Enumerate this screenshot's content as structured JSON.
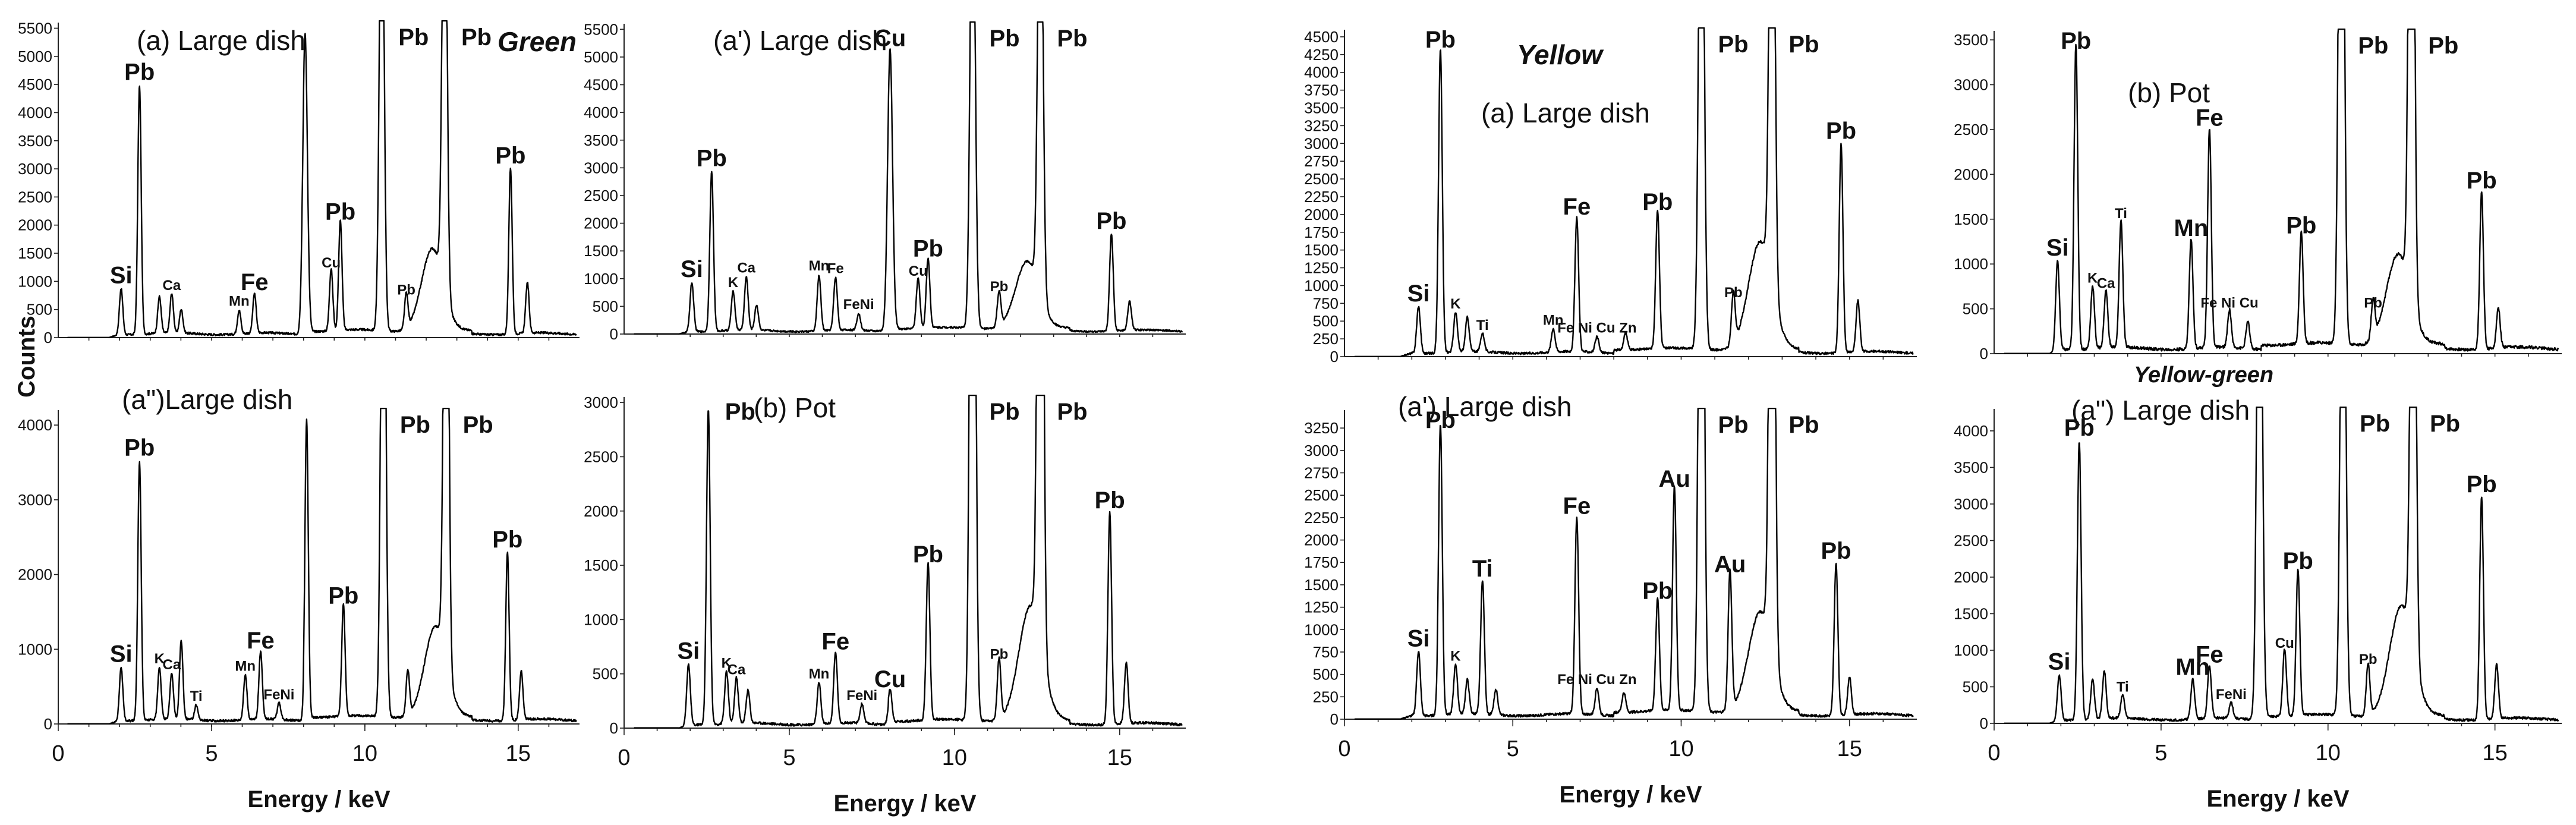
{
  "figure": {
    "y_axis_title": "Counts",
    "group_labels": {
      "green": "Green",
      "yellow": "Yellow",
      "yellow_green": "Yellow-green"
    }
  },
  "chart_data": [
    {
      "id": "green_a",
      "type": "line",
      "title": "(a) Large dish",
      "xlabel": "",
      "ylabel": "Counts",
      "xlim": [
        0,
        17
      ],
      "ylim": [
        0,
        5600
      ],
      "yticks": [
        0,
        500,
        1000,
        1500,
        2000,
        2500,
        3000,
        3500,
        4000,
        4500,
        5000,
        5500
      ],
      "xticks": [],
      "baseline": 70,
      "peaks": [
        {
          "x": 2.05,
          "y": 820,
          "label": "Si",
          "size": "l"
        },
        {
          "x": 2.65,
          "y": 4430,
          "label": "Pb",
          "size": "l"
        },
        {
          "x": 3.3,
          "y": 650,
          "label": "",
          "size": "s"
        },
        {
          "x": 3.7,
          "y": 700,
          "label": "Ca",
          "size": "s"
        },
        {
          "x": 4.01,
          "y": 420,
          "label": "",
          "size": "s"
        },
        {
          "x": 5.9,
          "y": 420,
          "label": "Mn",
          "size": "s"
        },
        {
          "x": 6.4,
          "y": 700,
          "label": "Fe",
          "size": "l"
        },
        {
          "x": 8.05,
          "y": 5300,
          "label": "",
          "size": "s"
        },
        {
          "x": 8.9,
          "y": 1100,
          "label": "Cu",
          "size": "s"
        },
        {
          "x": 9.2,
          "y": 1950,
          "label": "Pb",
          "size": "l"
        },
        {
          "x": 10.55,
          "y": 9000,
          "label": "Pb",
          "size": "l"
        },
        {
          "x": 11.35,
          "y": 620,
          "label": "Pb",
          "size": "s"
        },
        {
          "x": 12.6,
          "y": 9000,
          "label": "Pb",
          "size": "l"
        },
        {
          "x": 14.75,
          "y": 2950,
          "label": "Pb",
          "size": "l"
        },
        {
          "x": 15.3,
          "y": 900,
          "label": "",
          "size": "s"
        }
      ],
      "bump": {
        "x": 12.2,
        "y": 1450,
        "w": 0.35
      }
    },
    {
      "id": "green_a1",
      "type": "line",
      "title": "(a') Large dish",
      "xlabel": "",
      "ylabel": "Counts",
      "xlim": [
        0,
        17
      ],
      "ylim": [
        0,
        5600
      ],
      "yticks": [
        0,
        500,
        1000,
        1500,
        2000,
        2500,
        3000,
        3500,
        4000,
        4500,
        5000,
        5500
      ],
      "xticks": [],
      "baseline": 60,
      "peaks": [
        {
          "x": 2.05,
          "y": 880,
          "label": "Si",
          "size": "l"
        },
        {
          "x": 2.65,
          "y": 2880,
          "label": "Pb",
          "size": "l"
        },
        {
          "x": 3.3,
          "y": 700,
          "label": "K",
          "size": "s"
        },
        {
          "x": 3.7,
          "y": 960,
          "label": "Ca",
          "size": "s"
        },
        {
          "x": 4.01,
          "y": 450,
          "label": "",
          "size": "s"
        },
        {
          "x": 5.9,
          "y": 1000,
          "label": "Mn",
          "size": "s"
        },
        {
          "x": 6.4,
          "y": 950,
          "label": "Fe",
          "size": "s"
        },
        {
          "x": 7.1,
          "y": 300,
          "label": "FeNi",
          "size": "s"
        },
        {
          "x": 8.05,
          "y": 5050,
          "label": "Cu",
          "size": "l"
        },
        {
          "x": 8.9,
          "y": 900,
          "label": "Cu",
          "size": "s"
        },
        {
          "x": 9.2,
          "y": 1250,
          "label": "Pb",
          "size": "l"
        },
        {
          "x": 10.55,
          "y": 9000,
          "label": "Pb",
          "size": "l"
        },
        {
          "x": 11.35,
          "y": 620,
          "label": "Pb",
          "size": "s"
        },
        {
          "x": 12.6,
          "y": 9000,
          "label": "Pb",
          "size": "l"
        },
        {
          "x": 14.75,
          "y": 1750,
          "label": "Pb",
          "size": "l"
        },
        {
          "x": 15.3,
          "y": 520,
          "label": "",
          "size": "s"
        }
      ],
      "bump": {
        "x": 12.2,
        "y": 1200,
        "w": 0.35
      }
    },
    {
      "id": "yellow_a",
      "type": "line",
      "title": "(a) Large dish",
      "xlabel": "",
      "ylabel": "Counts",
      "xlim": [
        0,
        17
      ],
      "ylim": [
        0,
        4600
      ],
      "yticks": [
        0,
        250,
        500,
        750,
        1000,
        1250,
        1500,
        1750,
        2000,
        2250,
        2500,
        2750,
        3000,
        3250,
        3500,
        3750,
        4000,
        4250,
        4500
      ],
      "xticks": [],
      "baseline": 60,
      "peaks": [
        {
          "x": 2.2,
          "y": 660,
          "label": "Si",
          "size": "l"
        },
        {
          "x": 2.85,
          "y": 4280,
          "label": "Pb",
          "size": "l"
        },
        {
          "x": 3.3,
          "y": 560,
          "label": "K",
          "size": "s"
        },
        {
          "x": 3.65,
          "y": 480,
          "label": "",
          "size": "s"
        },
        {
          "x": 4.1,
          "y": 260,
          "label": "Ti",
          "size": "s"
        },
        {
          "x": 6.2,
          "y": 330,
          "label": "Mn",
          "size": "s"
        },
        {
          "x": 6.9,
          "y": 1880,
          "label": "Fe",
          "size": "l"
        },
        {
          "x": 7.5,
          "y": 220,
          "label": "Fe Ni Cu Zn",
          "size": "s"
        },
        {
          "x": 8.35,
          "y": 240,
          "label": "",
          "size": "s"
        },
        {
          "x": 9.3,
          "y": 1950,
          "label": "Pb",
          "size": "l"
        },
        {
          "x": 10.6,
          "y": 9000,
          "label": "Pb",
          "size": "l"
        },
        {
          "x": 11.55,
          "y": 720,
          "label": "Pb",
          "size": "s"
        },
        {
          "x": 12.7,
          "y": 9000,
          "label": "Pb",
          "size": "l"
        },
        {
          "x": 14.75,
          "y": 2950,
          "label": "Pb",
          "size": "l"
        },
        {
          "x": 15.25,
          "y": 720,
          "label": "",
          "size": "s"
        }
      ],
      "bump": {
        "x": 12.35,
        "y": 1500,
        "w": 0.35
      }
    },
    {
      "id": "yellow_b",
      "type": "line",
      "title": "(b) Pot",
      "xlabel": "",
      "ylabel": "Counts",
      "xlim": [
        0,
        17
      ],
      "ylim": [
        0,
        3600
      ],
      "yticks": [
        0,
        500,
        1000,
        1500,
        2000,
        2500,
        3000,
        3500
      ],
      "xticks": [],
      "baseline": 60,
      "peaks": [
        {
          "x": 1.9,
          "y": 1000,
          "label": "Si",
          "size": "l"
        },
        {
          "x": 2.45,
          "y": 3420,
          "label": "Pb",
          "size": "l"
        },
        {
          "x": 2.95,
          "y": 700,
          "label": "K",
          "size": "s"
        },
        {
          "x": 3.35,
          "y": 640,
          "label": "Ca",
          "size": "s"
        },
        {
          "x": 3.8,
          "y": 1420,
          "label": "Ti",
          "size": "s"
        },
        {
          "x": 5.9,
          "y": 1220,
          "label": "Mn",
          "size": "l"
        },
        {
          "x": 6.45,
          "y": 2450,
          "label": "Fe",
          "size": "l"
        },
        {
          "x": 7.05,
          "y": 420,
          "label": "Fe Ni Cu",
          "size": "s"
        },
        {
          "x": 7.6,
          "y": 300,
          "label": "",
          "size": "s"
        },
        {
          "x": 9.2,
          "y": 1250,
          "label": "Pb",
          "size": "l"
        },
        {
          "x": 10.4,
          "y": 9000,
          "label": "Pb",
          "size": "l"
        },
        {
          "x": 11.35,
          "y": 420,
          "label": "Pb",
          "size": "s"
        },
        {
          "x": 12.5,
          "y": 9000,
          "label": "Pb",
          "size": "l"
        },
        {
          "x": 14.6,
          "y": 1750,
          "label": "Pb",
          "size": "l"
        },
        {
          "x": 15.1,
          "y": 450,
          "label": "",
          "size": "s"
        }
      ],
      "bump": {
        "x": 12.1,
        "y": 1000,
        "w": 0.35
      }
    },
    {
      "id": "green_a2",
      "type": "line",
      "title": "(a\")Large dish",
      "xlabel": "Energy / keV",
      "ylabel": "Counts",
      "xlim": [
        0,
        17
      ],
      "ylim": [
        0,
        4200
      ],
      "yticks": [
        0,
        1000,
        2000,
        3000,
        4000
      ],
      "xticks": [
        0,
        5,
        10,
        15
      ],
      "baseline": 55,
      "peaks": [
        {
          "x": 2.05,
          "y": 720,
          "label": "Si",
          "size": "l"
        },
        {
          "x": 2.65,
          "y": 3480,
          "label": "Pb",
          "size": "l"
        },
        {
          "x": 3.3,
          "y": 700,
          "label": "K",
          "size": "s"
        },
        {
          "x": 3.7,
          "y": 620,
          "label": "Ca",
          "size": "s"
        },
        {
          "x": 4.01,
          "y": 1050,
          "label": "",
          "size": "s"
        },
        {
          "x": 4.5,
          "y": 200,
          "label": "Ti",
          "size": "s"
        },
        {
          "x": 6.1,
          "y": 600,
          "label": "Mn",
          "size": "s"
        },
        {
          "x": 6.6,
          "y": 900,
          "label": "Fe",
          "size": "l"
        },
        {
          "x": 7.2,
          "y": 220,
          "label": "FeNi",
          "size": "s"
        },
        {
          "x": 8.1,
          "y": 3980,
          "label": "",
          "size": "s"
        },
        {
          "x": 9.3,
          "y": 1500,
          "label": "Pb",
          "size": "l"
        },
        {
          "x": 10.6,
          "y": 9000,
          "label": "Pb",
          "size": "l"
        },
        {
          "x": 11.4,
          "y": 600,
          "label": "",
          "size": "s"
        },
        {
          "x": 12.65,
          "y": 9000,
          "label": "Pb",
          "size": "l"
        },
        {
          "x": 14.65,
          "y": 2250,
          "label": "Pb",
          "size": "l"
        },
        {
          "x": 15.1,
          "y": 650,
          "label": "",
          "size": "s"
        }
      ],
      "bump": {
        "x": 12.3,
        "y": 1200,
        "w": 0.35
      }
    },
    {
      "id": "green_b",
      "type": "line",
      "title": "(b) Pot",
      "xlabel": "Energy / keV",
      "ylabel": "Counts",
      "xlim": [
        0,
        17
      ],
      "ylim": [
        0,
        3050
      ],
      "yticks": [
        0,
        500,
        1000,
        1500,
        2000,
        2500,
        3000
      ],
      "xticks": [
        0,
        5,
        10,
        15
      ],
      "baseline": 40,
      "peaks": [
        {
          "x": 1.95,
          "y": 560,
          "label": "Si",
          "size": "l"
        },
        {
          "x": 2.55,
          "y": 2900,
          "label": "Pb",
          "size": "l"
        },
        {
          "x": 3.1,
          "y": 480,
          "label": "K",
          "size": "s"
        },
        {
          "x": 3.4,
          "y": 420,
          "label": "Ca",
          "size": "s"
        },
        {
          "x": 3.75,
          "y": 300,
          "label": "",
          "size": "s"
        },
        {
          "x": 5.9,
          "y": 380,
          "label": "Mn",
          "size": "s"
        },
        {
          "x": 6.4,
          "y": 650,
          "label": "Fe",
          "size": "l"
        },
        {
          "x": 7.2,
          "y": 180,
          "label": "FeNi",
          "size": "s"
        },
        {
          "x": 8.05,
          "y": 300,
          "label": "Cu",
          "size": "l"
        },
        {
          "x": 9.2,
          "y": 1450,
          "label": "Pb",
          "size": "l"
        },
        {
          "x": 10.55,
          "y": 9000,
          "label": "Pb",
          "size": "l"
        },
        {
          "x": 11.35,
          "y": 560,
          "label": "Pb",
          "size": "s"
        },
        {
          "x": 12.6,
          "y": 9000,
          "label": "Pb",
          "size": "l"
        },
        {
          "x": 14.7,
          "y": 1950,
          "label": "Pb",
          "size": "l"
        },
        {
          "x": 15.2,
          "y": 560,
          "label": "",
          "size": "s"
        }
      ],
      "bump": {
        "x": 12.3,
        "y": 1050,
        "w": 0.35
      }
    },
    {
      "id": "yellow_a1",
      "type": "line",
      "title": "(a') Large dish",
      "xlabel": "Energy / keV",
      "ylabel": "Counts",
      "xlim": [
        0,
        17
      ],
      "ylim": [
        0,
        3450
      ],
      "yticks": [
        0,
        250,
        500,
        750,
        1000,
        1250,
        1500,
        1750,
        2000,
        2250,
        2500,
        2750,
        3000,
        3250
      ],
      "xticks": [
        0,
        5,
        10,
        15
      ],
      "baseline": 50,
      "peaks": [
        {
          "x": 2.2,
          "y": 720,
          "label": "Si",
          "size": "l"
        },
        {
          "x": 2.85,
          "y": 3250,
          "label": "Pb",
          "size": "l"
        },
        {
          "x": 3.3,
          "y": 560,
          "label": "K",
          "size": "s"
        },
        {
          "x": 3.65,
          "y": 380,
          "label": "",
          "size": "s"
        },
        {
          "x": 4.1,
          "y": 1500,
          "label": "Ti",
          "size": "l"
        },
        {
          "x": 4.5,
          "y": 280,
          "label": "",
          "size": "s"
        },
        {
          "x": 6.9,
          "y": 2200,
          "label": "Fe",
          "size": "l"
        },
        {
          "x": 7.5,
          "y": 300,
          "label": "Fe Ni Cu Zn",
          "size": "s"
        },
        {
          "x": 8.3,
          "y": 220,
          "label": "",
          "size": "s"
        },
        {
          "x": 9.3,
          "y": 1250,
          "label": "Pb",
          "size": "l"
        },
        {
          "x": 9.8,
          "y": 2500,
          "label": "Au",
          "size": "l"
        },
        {
          "x": 10.6,
          "y": 9000,
          "label": "Pb",
          "size": "l"
        },
        {
          "x": 11.45,
          "y": 1550,
          "label": "Au",
          "size": "l"
        },
        {
          "x": 12.7,
          "y": 9000,
          "label": "Pb",
          "size": "l"
        },
        {
          "x": 14.6,
          "y": 1700,
          "label": "Pb",
          "size": "l"
        },
        {
          "x": 15.0,
          "y": 420,
          "label": "",
          "size": "s"
        }
      ],
      "bump": {
        "x": 12.35,
        "y": 1100,
        "w": 0.35
      }
    },
    {
      "id": "yellowgreen_a2",
      "type": "line",
      "title": "(a\") Large dish",
      "xlabel": "Energy / keV",
      "ylabel": "Counts",
      "xlim": [
        0,
        17
      ],
      "ylim": [
        0,
        4300
      ],
      "yticks": [
        0,
        500,
        1000,
        1500,
        2000,
        2500,
        3000,
        3500,
        4000
      ],
      "xticks": [
        0,
        5,
        10,
        15
      ],
      "baseline": 60,
      "peaks": [
        {
          "x": 1.95,
          "y": 620,
          "label": "Si",
          "size": "l"
        },
        {
          "x": 2.55,
          "y": 3820,
          "label": "Pb",
          "size": "l"
        },
        {
          "x": 2.95,
          "y": 550,
          "label": "",
          "size": "s"
        },
        {
          "x": 3.3,
          "y": 650,
          "label": "",
          "size": "s"
        },
        {
          "x": 3.85,
          "y": 320,
          "label": "Ti",
          "size": "s"
        },
        {
          "x": 5.95,
          "y": 550,
          "label": "Mn",
          "size": "l"
        },
        {
          "x": 6.45,
          "y": 720,
          "label": "Fe",
          "size": "l"
        },
        {
          "x": 7.1,
          "y": 220,
          "label": "FeNi",
          "size": "s"
        },
        {
          "x": 7.95,
          "y": 9000,
          "label": "",
          "size": "s"
        },
        {
          "x": 8.7,
          "y": 920,
          "label": "Cu",
          "size": "s"
        },
        {
          "x": 9.1,
          "y": 2000,
          "label": "Pb",
          "size": "l"
        },
        {
          "x": 10.45,
          "y": 9000,
          "label": "Pb",
          "size": "l"
        },
        {
          "x": 11.2,
          "y": 700,
          "label": "Pb",
          "size": "s"
        },
        {
          "x": 12.55,
          "y": 9000,
          "label": "Pb",
          "size": "l"
        },
        {
          "x": 14.6,
          "y": 3050,
          "label": "Pb",
          "size": "l"
        },
        {
          "x": 15.05,
          "y": 750,
          "label": "",
          "size": "s"
        }
      ],
      "bump": {
        "x": 12.2,
        "y": 1500,
        "w": 0.35
      }
    }
  ]
}
